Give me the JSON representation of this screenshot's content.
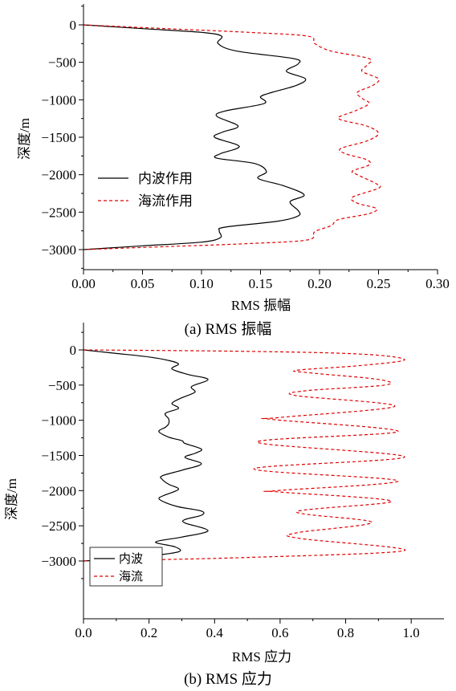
{
  "chart_data": [
    {
      "type": "line",
      "caption": "(a) RMS 振幅",
      "xlabel": "RMS 振幅",
      "ylabel": "深度/m",
      "xlim": [
        0,
        0.3
      ],
      "ylim": [
        -3000,
        0
      ],
      "x_ticks": [
        "0.00",
        "0.05",
        "0.10",
        "0.15",
        "0.20",
        "0.25",
        "0.30"
      ],
      "y_ticks": [
        "0",
        "-500",
        "-1000",
        "-1500",
        "-2000",
        "-2500",
        "-3000"
      ],
      "legend_position": "lower-left",
      "series": [
        {
          "name": "内波作用",
          "color": "#000000",
          "dash": "solid",
          "points": [
            [
              0.0,
              0
            ],
            [
              0.05,
              -50
            ],
            [
              0.1,
              -100
            ],
            [
              0.117,
              -150
            ],
            [
              0.114,
              -250
            ],
            [
              0.13,
              -350
            ],
            [
              0.178,
              -450
            ],
            [
              0.182,
              -520
            ],
            [
              0.172,
              -620
            ],
            [
              0.188,
              -720
            ],
            [
              0.18,
              -810
            ],
            [
              0.16,
              -900
            ],
            [
              0.15,
              -960
            ],
            [
              0.153,
              -1050
            ],
            [
              0.12,
              -1150
            ],
            [
              0.113,
              -1220
            ],
            [
              0.131,
              -1350
            ],
            [
              0.118,
              -1430
            ],
            [
              0.111,
              -1500
            ],
            [
              0.13,
              -1600
            ],
            [
              0.13,
              -1650
            ],
            [
              0.116,
              -1720
            ],
            [
              0.113,
              -1780
            ],
            [
              0.145,
              -1850
            ],
            [
              0.155,
              -1960
            ],
            [
              0.148,
              -2050
            ],
            [
              0.17,
              -2150
            ],
            [
              0.187,
              -2270
            ],
            [
              0.175,
              -2360
            ],
            [
              0.182,
              -2480
            ],
            [
              0.182,
              -2550
            ],
            [
              0.165,
              -2620
            ],
            [
              0.12,
              -2700
            ],
            [
              0.115,
              -2750
            ],
            [
              0.116,
              -2840
            ],
            [
              0.1,
              -2900
            ],
            [
              0.05,
              -2950
            ],
            [
              0.0,
              -3000
            ]
          ]
        },
        {
          "name": "海流作用",
          "color": "#e00000",
          "dash": "dashed",
          "points": [
            [
              0.0,
              0
            ],
            [
              0.07,
              -50
            ],
            [
              0.14,
              -100
            ],
            [
              0.19,
              -150
            ],
            [
              0.196,
              -250
            ],
            [
              0.21,
              -350
            ],
            [
              0.242,
              -450
            ],
            [
              0.24,
              -540
            ],
            [
              0.236,
              -620
            ],
            [
              0.25,
              -720
            ],
            [
              0.245,
              -810
            ],
            [
              0.232,
              -900
            ],
            [
              0.236,
              -980
            ],
            [
              0.242,
              -1050
            ],
            [
              0.23,
              -1150
            ],
            [
              0.216,
              -1250
            ],
            [
              0.24,
              -1350
            ],
            [
              0.25,
              -1450
            ],
            [
              0.24,
              -1550
            ],
            [
              0.218,
              -1650
            ],
            [
              0.222,
              -1720
            ],
            [
              0.24,
              -1800
            ],
            [
              0.242,
              -1870
            ],
            [
              0.228,
              -1950
            ],
            [
              0.232,
              -2000
            ],
            [
              0.248,
              -2120
            ],
            [
              0.25,
              -2180
            ],
            [
              0.228,
              -2300
            ],
            [
              0.232,
              -2380
            ],
            [
              0.248,
              -2450
            ],
            [
              0.242,
              -2520
            ],
            [
              0.216,
              -2600
            ],
            [
              0.21,
              -2680
            ],
            [
              0.196,
              -2760
            ],
            [
              0.19,
              -2870
            ],
            [
              0.14,
              -2920
            ],
            [
              0.07,
              -2960
            ],
            [
              0.0,
              -3000
            ]
          ]
        }
      ]
    },
    {
      "type": "line",
      "caption": "(b) RMS 应力",
      "xlabel": "RMS 应力",
      "ylabel": "深度/m",
      "xlim": [
        0,
        1.1
      ],
      "ylim": [
        -3000,
        0
      ],
      "x_ticks": [
        "0.0",
        "0.2",
        "0.4",
        "0.6",
        "0.8",
        "1.0"
      ],
      "y_ticks": [
        "0",
        "-500",
        "-1000",
        "-1500",
        "-2000",
        "-2500",
        "-3000"
      ],
      "legend_position": "lower-left",
      "series": [
        {
          "name": "内波",
          "color": "#000000",
          "dash": "solid",
          "points": [
            [
              0.0,
              0
            ],
            [
              0.1,
              -50
            ],
            [
              0.2,
              -100
            ],
            [
              0.26,
              -150
            ],
            [
              0.29,
              -200
            ],
            [
              0.27,
              -270
            ],
            [
              0.32,
              -350
            ],
            [
              0.38,
              -420
            ],
            [
              0.33,
              -520
            ],
            [
              0.34,
              -600
            ],
            [
              0.3,
              -680
            ],
            [
              0.27,
              -760
            ],
            [
              0.29,
              -830
            ],
            [
              0.25,
              -900
            ],
            [
              0.26,
              -980
            ],
            [
              0.26,
              -1050
            ],
            [
              0.25,
              -1100
            ],
            [
              0.23,
              -1160
            ],
            [
              0.26,
              -1240
            ],
            [
              0.3,
              -1290
            ],
            [
              0.31,
              -1330
            ],
            [
              0.36,
              -1410
            ],
            [
              0.34,
              -1470
            ],
            [
              0.31,
              -1530
            ],
            [
              0.36,
              -1620
            ],
            [
              0.3,
              -1710
            ],
            [
              0.24,
              -1790
            ],
            [
              0.24,
              -1840
            ],
            [
              0.26,
              -1910
            ],
            [
              0.29,
              -1980
            ],
            [
              0.25,
              -2060
            ],
            [
              0.23,
              -2110
            ],
            [
              0.25,
              -2170
            ],
            [
              0.29,
              -2230
            ],
            [
              0.36,
              -2290
            ],
            [
              0.36,
              -2350
            ],
            [
              0.31,
              -2410
            ],
            [
              0.31,
              -2460
            ],
            [
              0.38,
              -2570
            ],
            [
              0.3,
              -2660
            ],
            [
              0.22,
              -2730
            ],
            [
              0.28,
              -2800
            ],
            [
              0.29,
              -2870
            ],
            [
              0.2,
              -2930
            ],
            [
              0.1,
              -2970
            ],
            [
              0.0,
              -3000
            ]
          ]
        },
        {
          "name": "海流",
          "color": "#e00000",
          "dash": "dashed",
          "points": [
            [
              0.0,
              0
            ],
            [
              0.5,
              -20
            ],
            [
              0.85,
              -60
            ],
            [
              0.98,
              -140
            ],
            [
              0.85,
              -220
            ],
            [
              0.65,
              -290
            ],
            [
              0.7,
              -330
            ],
            [
              0.9,
              -420
            ],
            [
              0.92,
              -500
            ],
            [
              0.68,
              -580
            ],
            [
              0.65,
              -650
            ],
            [
              0.95,
              -800
            ],
            [
              0.6,
              -960
            ],
            [
              0.58,
              -990
            ],
            [
              0.96,
              -1160
            ],
            [
              0.53,
              -1310
            ],
            [
              0.98,
              -1520
            ],
            [
              0.52,
              -1690
            ],
            [
              0.96,
              -1860
            ],
            [
              0.59,
              -2000
            ],
            [
              0.6,
              -2020
            ],
            [
              0.94,
              -2150
            ],
            [
              0.65,
              -2300
            ],
            [
              0.88,
              -2450
            ],
            [
              0.65,
              -2600
            ],
            [
              0.66,
              -2680
            ],
            [
              0.98,
              -2850
            ],
            [
              0.5,
              -2950
            ],
            [
              0.0,
              -3000
            ]
          ]
        }
      ]
    }
  ]
}
